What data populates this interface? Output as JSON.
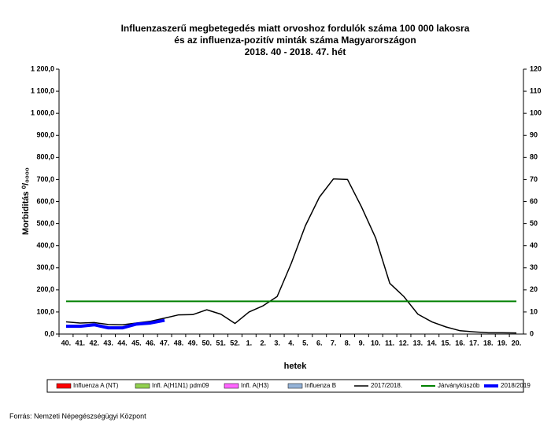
{
  "chart_data": {
    "type": "line",
    "title": [
      "Influenzaszerű megbetegedés miatt orvoshoz fordulók száma 100 000 lakosra",
      "és az influenza-pozitív minták száma Magyarországon",
      "2018. 40 - 2018. 47. hét"
    ],
    "x_label": "hetek",
    "y_label": "Morbiditás ⁰/₀₀₀₀",
    "categories": [
      "40.",
      "41.",
      "42.",
      "43.",
      "44.",
      "45.",
      "46.",
      "47.",
      "48.",
      "49.",
      "50.",
      "51.",
      "52.",
      "1.",
      "2.",
      "3.",
      "4.",
      "5.",
      "6.",
      "7.",
      "8.",
      "9.",
      "10.",
      "11.",
      "12.",
      "13.",
      "14.",
      "15.",
      "16.",
      "17.",
      "18.",
      "19.",
      "20."
    ],
    "ylim": [
      0,
      1200
    ],
    "yticks": [
      {
        "value": 0,
        "label": "0,0"
      },
      {
        "value": 100,
        "label": "100,0"
      },
      {
        "value": 200,
        "label": "200,0"
      },
      {
        "value": 300,
        "label": "300,0"
      },
      {
        "value": 400,
        "label": "400,0"
      },
      {
        "value": 500,
        "label": "500,0"
      },
      {
        "value": 600,
        "label": "600,0"
      },
      {
        "value": 700,
        "label": "700,0"
      },
      {
        "value": 800,
        "label": "800,0"
      },
      {
        "value": 900,
        "label": "900,0"
      },
      {
        "value": 1000,
        "label": "1 000,0"
      },
      {
        "value": 1100,
        "label": "1 100,0"
      },
      {
        "value": 1200,
        "label": "1 200,0"
      }
    ],
    "y2lim": [
      0,
      120
    ],
    "y2ticks": [
      0,
      10,
      20,
      30,
      40,
      50,
      60,
      70,
      80,
      90,
      100,
      110,
      120
    ],
    "series": [
      {
        "name": "Influenza A (NT)",
        "type": "bar",
        "axis": "y2",
        "color": "#ff0000",
        "values": [
          null,
          null,
          null,
          null,
          null,
          null,
          null,
          null,
          null,
          null,
          null,
          null,
          null,
          null,
          null,
          null,
          null,
          null,
          null,
          null,
          null,
          null,
          null,
          null,
          null,
          null,
          null,
          null,
          null,
          null,
          null,
          null,
          null
        ]
      },
      {
        "name": "Infl. A(H1N1) pdm09",
        "type": "bar",
        "axis": "y2",
        "color": "#92d050",
        "values": [
          null,
          null,
          null,
          null,
          null,
          null,
          null,
          null,
          null,
          null,
          null,
          null,
          null,
          null,
          null,
          null,
          null,
          null,
          null,
          null,
          null,
          null,
          null,
          null,
          null,
          null,
          null,
          null,
          null,
          null,
          null,
          null,
          null
        ]
      },
      {
        "name": "Infl. A(H3)",
        "type": "bar",
        "axis": "y2",
        "color": "#ff66ff",
        "values": [
          null,
          null,
          null,
          null,
          null,
          null,
          null,
          null,
          null,
          null,
          null,
          null,
          null,
          null,
          null,
          null,
          null,
          null,
          null,
          null,
          null,
          null,
          null,
          null,
          null,
          null,
          null,
          null,
          null,
          null,
          null,
          null,
          null
        ]
      },
      {
        "name": "Influenza B",
        "type": "bar",
        "axis": "y2",
        "color": "#95b3d7",
        "values": [
          null,
          null,
          null,
          null,
          null,
          null,
          null,
          null,
          null,
          null,
          null,
          null,
          null,
          null,
          null,
          null,
          null,
          null,
          null,
          null,
          null,
          null,
          null,
          null,
          null,
          null,
          null,
          null,
          null,
          null,
          null,
          null,
          null
        ]
      },
      {
        "name": "2017/2018.",
        "type": "line",
        "color": "#000000",
        "width": 1.5,
        "values": [
          55,
          50,
          52,
          43,
          42,
          50,
          58,
          72,
          87,
          88,
          110,
          90,
          48,
          100,
          128,
          170,
          320,
          490,
          620,
          703,
          700,
          575,
          435,
          230,
          170,
          90,
          55,
          32,
          15,
          10,
          6,
          6,
          5
        ]
      },
      {
        "name": "Járványküszöb",
        "type": "line",
        "color": "#008000",
        "width": 2,
        "values": [
          148,
          148,
          148,
          148,
          148,
          148,
          148,
          148,
          148,
          148,
          148,
          148,
          148,
          148,
          148,
          148,
          148,
          148,
          148,
          148,
          148,
          148,
          148,
          148,
          148,
          148,
          148,
          148,
          148,
          148,
          148,
          148,
          148
        ]
      },
      {
        "name": "2018/2019",
        "type": "line",
        "color": "#0000ff",
        "width": 4,
        "values": [
          35,
          35,
          42,
          28,
          28,
          45,
          50,
          62,
          null,
          null,
          null,
          null,
          null,
          null,
          null,
          null,
          null,
          null,
          null,
          null,
          null,
          null,
          null,
          null,
          null,
          null,
          null,
          null,
          null,
          null,
          null,
          null,
          null
        ]
      }
    ]
  },
  "source": "Forrás: Nemzeti Népegészségügyi Központ"
}
